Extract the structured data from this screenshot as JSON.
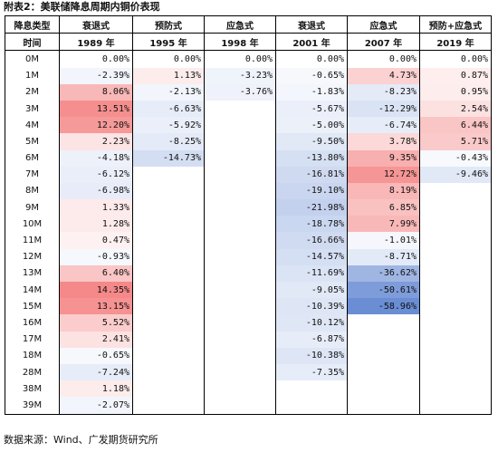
{
  "caption": "附表2：美联储降息周期内铜价表现",
  "source": "数据来源：Wind、广发期货研究所",
  "header": {
    "type_label": "降息类型",
    "time_label": "时间",
    "types": [
      "衰退式",
      "预防式",
      "应急式",
      "衰退式",
      "应急式",
      "预防+应急式"
    ],
    "years": [
      "1989 年",
      "1995 年",
      "1998 年",
      "2001 年",
      "2007 年",
      "2019 年"
    ]
  },
  "rows": [
    {
      "m": "0M",
      "v": [
        "0.00%",
        "0.00%",
        "0.00%",
        "0.00%",
        "0.00%",
        "0.00%"
      ]
    },
    {
      "m": "1M",
      "v": [
        "-2.39%",
        "1.13%",
        "-3.23%",
        "-0.65%",
        "4.73%",
        "0.87%"
      ]
    },
    {
      "m": "2M",
      "v": [
        "8.06%",
        "-2.13%",
        "-3.76%",
        "-1.83%",
        "-8.23%",
        "0.95%"
      ]
    },
    {
      "m": "3M",
      "v": [
        "13.51%",
        "-6.63%",
        "",
        "-5.67%",
        "-12.29%",
        "2.54%"
      ]
    },
    {
      "m": "4M",
      "v": [
        "12.20%",
        "-5.92%",
        "",
        "-5.00%",
        "-6.74%",
        "6.44%"
      ]
    },
    {
      "m": "5M",
      "v": [
        "2.23%",
        "-8.25%",
        "",
        "-9.50%",
        "3.78%",
        "5.71%"
      ]
    },
    {
      "m": "6M",
      "v": [
        "-4.18%",
        "-14.73%",
        "",
        "-13.80%",
        "9.35%",
        "-0.43%"
      ]
    },
    {
      "m": "7M",
      "v": [
        "-6.12%",
        "",
        "",
        "-16.81%",
        "12.72%",
        "-9.46%"
      ]
    },
    {
      "m": "8M",
      "v": [
        "-6.98%",
        "",
        "",
        "-19.10%",
        "8.19%",
        ""
      ]
    },
    {
      "m": "9M",
      "v": [
        "1.33%",
        "",
        "",
        "-21.98%",
        "6.85%",
        ""
      ]
    },
    {
      "m": "10M",
      "v": [
        "1.28%",
        "",
        "",
        "-18.78%",
        "7.99%",
        ""
      ]
    },
    {
      "m": "11M",
      "v": [
        "0.47%",
        "",
        "",
        "-16.66%",
        "-1.01%",
        ""
      ]
    },
    {
      "m": "12M",
      "v": [
        "-0.93%",
        "",
        "",
        "-14.57%",
        "-8.71%",
        ""
      ]
    },
    {
      "m": "13M",
      "v": [
        "6.40%",
        "",
        "",
        "-11.69%",
        "-36.62%",
        ""
      ]
    },
    {
      "m": "14M",
      "v": [
        "14.35%",
        "",
        "",
        "-9.05%",
        "-50.61%",
        ""
      ]
    },
    {
      "m": "15M",
      "v": [
        "13.15%",
        "",
        "",
        "-10.39%",
        "-58.96%",
        ""
      ]
    },
    {
      "m": "16M",
      "v": [
        "5.52%",
        "",
        "",
        "-10.12%",
        "",
        ""
      ]
    },
    {
      "m": "17M",
      "v": [
        "2.41%",
        "",
        "",
        "-6.87%",
        "",
        ""
      ]
    },
    {
      "m": "18M",
      "v": [
        "-0.65%",
        "",
        "",
        "-10.38%",
        "",
        ""
      ]
    },
    {
      "m": "28M",
      "v": [
        "-7.24%",
        "",
        "",
        "-7.35%",
        "",
        ""
      ]
    },
    {
      "m": "38M",
      "v": [
        "1.18%",
        "",
        "",
        "",
        "",
        ""
      ]
    },
    {
      "m": "39M",
      "v": [
        "-2.07%",
        "",
        "",
        "",
        "",
        ""
      ]
    }
  ]
}
